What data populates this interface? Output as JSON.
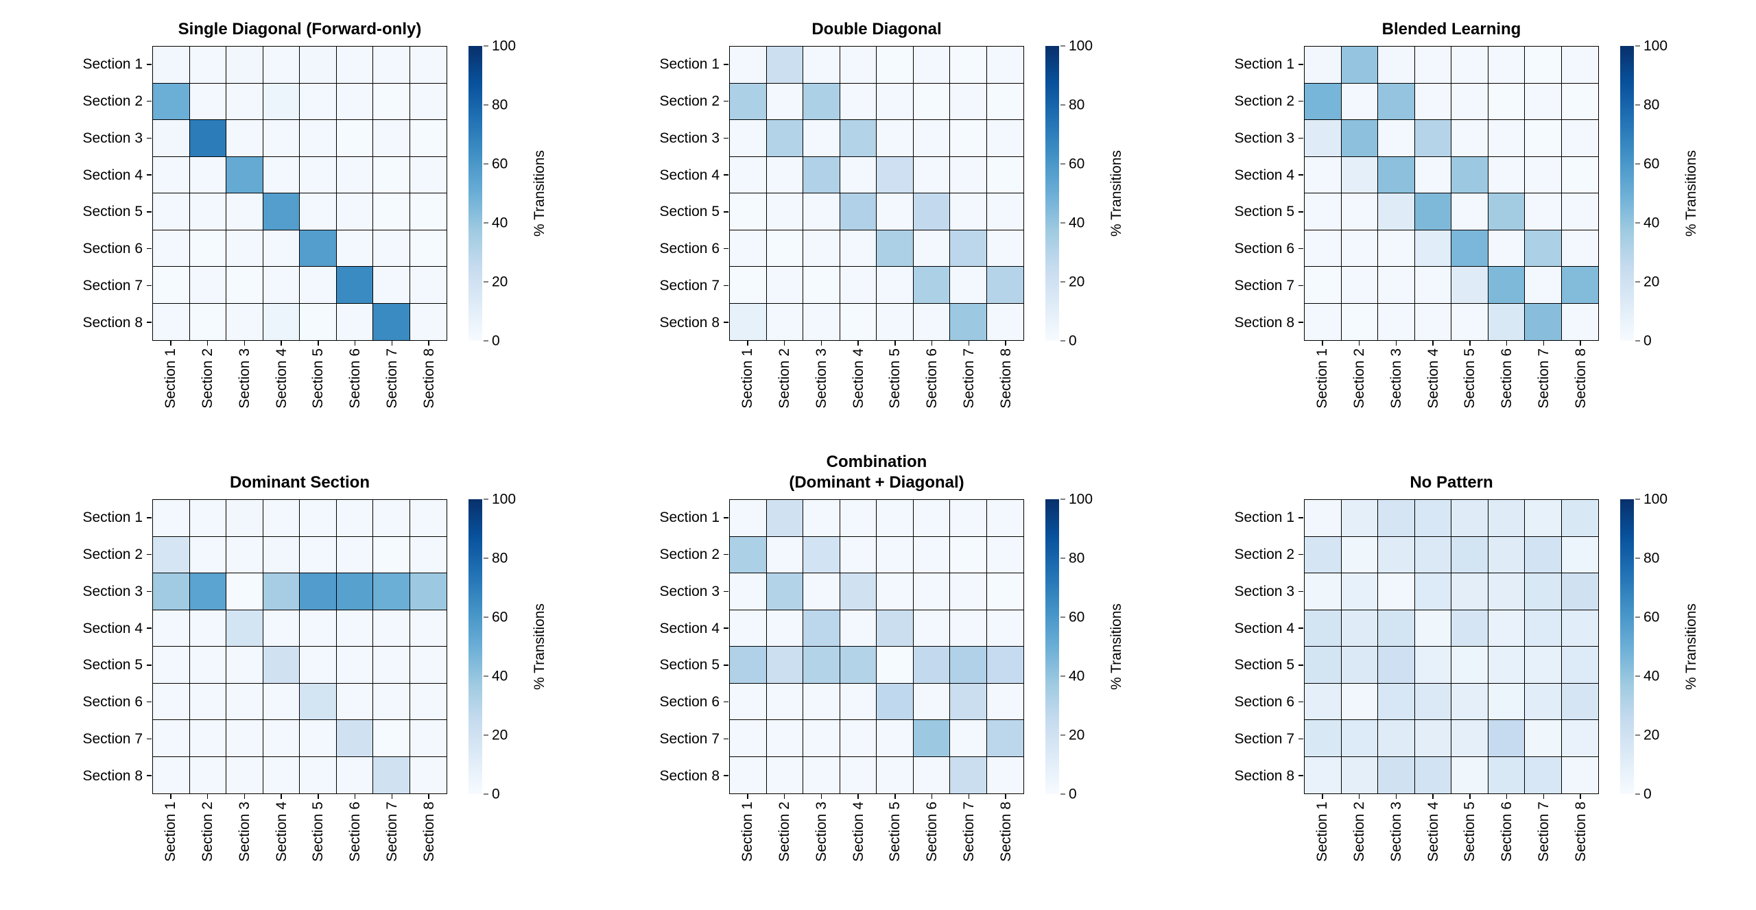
{
  "figure": {
    "colorbar_label": "% Transitions",
    "colorbar_ticks": [
      0,
      20,
      40,
      60,
      80,
      100
    ],
    "vmin": 0,
    "vmax": 100,
    "colormap": "Blues",
    "colormap_stops": [
      "#f7fbff",
      "#deebf7",
      "#c6dbef",
      "#9ecae1",
      "#6baed6",
      "#4292c6",
      "#2171b5",
      "#08519c",
      "#08306b"
    ],
    "section_labels": [
      "Section 1",
      "Section 2",
      "Section 3",
      "Section 4",
      "Section 5",
      "Section 6",
      "Section 7",
      "Section 8"
    ]
  },
  "chart_data": [
    {
      "type": "heatmap",
      "title": "Single Diagonal (Forward-only)",
      "x_categories": [
        "Section 1",
        "Section 2",
        "Section 3",
        "Section 4",
        "Section 5",
        "Section 6",
        "Section 7",
        "Section 8"
      ],
      "y_categories": [
        "Section 1",
        "Section 2",
        "Section 3",
        "Section 4",
        "Section 5",
        "Section 6",
        "Section 7",
        "Section 8"
      ],
      "vmin": 0,
      "vmax": 100,
      "values": [
        [
          3,
          2,
          3,
          2,
          3,
          2,
          2,
          2
        ],
        [
          50,
          2,
          2,
          5,
          2,
          2,
          1,
          2
        ],
        [
          3,
          71,
          2,
          2,
          2,
          1,
          2,
          1
        ],
        [
          2,
          2,
          52,
          2,
          2,
          2,
          1,
          2
        ],
        [
          2,
          2,
          2,
          57,
          2,
          2,
          1,
          1
        ],
        [
          2,
          1,
          2,
          2,
          57,
          2,
          2,
          1
        ],
        [
          1,
          2,
          1,
          2,
          2,
          65,
          2,
          2
        ],
        [
          2,
          1,
          2,
          5,
          1,
          2,
          65,
          2
        ]
      ]
    },
    {
      "type": "heatmap",
      "title": "Double Diagonal",
      "x_categories": [
        "Section 1",
        "Section 2",
        "Section 3",
        "Section 4",
        "Section 5",
        "Section 6",
        "Section 7",
        "Section 8"
      ],
      "y_categories": [
        "Section 1",
        "Section 2",
        "Section 3",
        "Section 4",
        "Section 5",
        "Section 6",
        "Section 7",
        "Section 8"
      ],
      "vmin": 0,
      "vmax": 100,
      "values": [
        [
          2,
          22,
          2,
          2,
          1,
          2,
          1,
          2
        ],
        [
          33,
          2,
          33,
          2,
          2,
          1,
          2,
          1
        ],
        [
          2,
          31,
          2,
          31,
          2,
          2,
          1,
          2
        ],
        [
          2,
          2,
          32,
          2,
          21,
          2,
          2,
          1
        ],
        [
          1,
          2,
          2,
          32,
          2,
          26,
          2,
          2
        ],
        [
          2,
          1,
          2,
          2,
          33,
          2,
          28,
          2
        ],
        [
          1,
          2,
          1,
          2,
          2,
          33,
          2,
          30
        ],
        [
          8,
          2,
          2,
          1,
          2,
          2,
          38,
          2
        ]
      ]
    },
    {
      "type": "heatmap",
      "title": "Blended Learning",
      "x_categories": [
        "Section 1",
        "Section 2",
        "Section 3",
        "Section 4",
        "Section 5",
        "Section 6",
        "Section 7",
        "Section 8"
      ],
      "y_categories": [
        "Section 1",
        "Section 2",
        "Section 3",
        "Section 4",
        "Section 5",
        "Section 6",
        "Section 7",
        "Section 8"
      ],
      "vmin": 0,
      "vmax": 100,
      "values": [
        [
          3,
          40,
          3,
          2,
          2,
          2,
          1,
          2
        ],
        [
          47,
          2,
          40,
          2,
          2,
          1,
          2,
          1
        ],
        [
          12,
          42,
          2,
          30,
          2,
          2,
          1,
          2
        ],
        [
          2,
          9,
          42,
          2,
          38,
          2,
          2,
          1
        ],
        [
          2,
          2,
          12,
          45,
          2,
          36,
          2,
          2
        ],
        [
          2,
          2,
          2,
          11,
          46,
          2,
          33,
          2
        ],
        [
          1,
          2,
          2,
          2,
          12,
          45,
          2,
          44
        ],
        [
          2,
          1,
          2,
          2,
          2,
          15,
          43,
          2
        ]
      ]
    },
    {
      "type": "heatmap",
      "title": "Dominant Section",
      "x_categories": [
        "Section 1",
        "Section 2",
        "Section 3",
        "Section 4",
        "Section 5",
        "Section 6",
        "Section 7",
        "Section 8"
      ],
      "y_categories": [
        "Section 1",
        "Section 2",
        "Section 3",
        "Section 4",
        "Section 5",
        "Section 6",
        "Section 7",
        "Section 8"
      ],
      "vmin": 0,
      "vmax": 100,
      "values": [
        [
          2,
          2,
          3,
          2,
          2,
          2,
          2,
          2
        ],
        [
          17,
          2,
          2,
          3,
          2,
          2,
          1,
          2
        ],
        [
          37,
          55,
          1,
          35,
          58,
          56,
          50,
          38
        ],
        [
          2,
          2,
          18,
          2,
          2,
          2,
          2,
          2
        ],
        [
          2,
          2,
          2,
          20,
          2,
          2,
          2,
          2
        ],
        [
          2,
          2,
          2,
          2,
          18,
          2,
          2,
          2
        ],
        [
          2,
          2,
          2,
          2,
          2,
          20,
          1,
          2
        ],
        [
          2,
          2,
          2,
          2,
          2,
          2,
          20,
          2
        ]
      ]
    },
    {
      "type": "heatmap",
      "title": "Combination\n(Dominant + Diagonal)",
      "x_categories": [
        "Section 1",
        "Section 2",
        "Section 3",
        "Section 4",
        "Section 5",
        "Section 6",
        "Section 7",
        "Section 8"
      ],
      "y_categories": [
        "Section 1",
        "Section 2",
        "Section 3",
        "Section 4",
        "Section 5",
        "Section 6",
        "Section 7",
        "Section 8"
      ],
      "vmin": 0,
      "vmax": 100,
      "values": [
        [
          2,
          20,
          2,
          2,
          2,
          2,
          2,
          2
        ],
        [
          33,
          2,
          19,
          2,
          2,
          2,
          1,
          2
        ],
        [
          2,
          31,
          2,
          20,
          2,
          2,
          2,
          1
        ],
        [
          2,
          2,
          28,
          2,
          23,
          2,
          2,
          2
        ],
        [
          32,
          22,
          31,
          31,
          1,
          26,
          32,
          25
        ],
        [
          2,
          2,
          2,
          2,
          27,
          2,
          23,
          2
        ],
        [
          2,
          2,
          2,
          2,
          2,
          38,
          2,
          28
        ],
        [
          2,
          2,
          2,
          2,
          2,
          2,
          23,
          2
        ]
      ]
    },
    {
      "type": "heatmap",
      "title": "No Pattern",
      "x_categories": [
        "Section 1",
        "Section 2",
        "Section 3",
        "Section 4",
        "Section 5",
        "Section 6",
        "Section 7",
        "Section 8"
      ],
      "y_categories": [
        "Section 1",
        "Section 2",
        "Section 3",
        "Section 4",
        "Section 5",
        "Section 6",
        "Section 7",
        "Section 8"
      ],
      "vmin": 0,
      "vmax": 100,
      "values": [
        [
          3,
          9,
          17,
          16,
          12,
          12,
          8,
          15
        ],
        [
          17,
          4,
          12,
          14,
          18,
          12,
          19,
          5
        ],
        [
          4,
          8,
          3,
          13,
          10,
          10,
          15,
          20
        ],
        [
          18,
          12,
          18,
          4,
          17,
          7,
          13,
          11
        ],
        [
          18,
          14,
          21,
          8,
          5,
          8,
          8,
          13
        ],
        [
          9,
          3,
          16,
          14,
          9,
          5,
          11,
          17
        ],
        [
          15,
          13,
          12,
          10,
          9,
          25,
          4,
          7
        ],
        [
          7,
          9,
          20,
          19,
          4,
          15,
          16,
          3
        ]
      ]
    }
  ]
}
